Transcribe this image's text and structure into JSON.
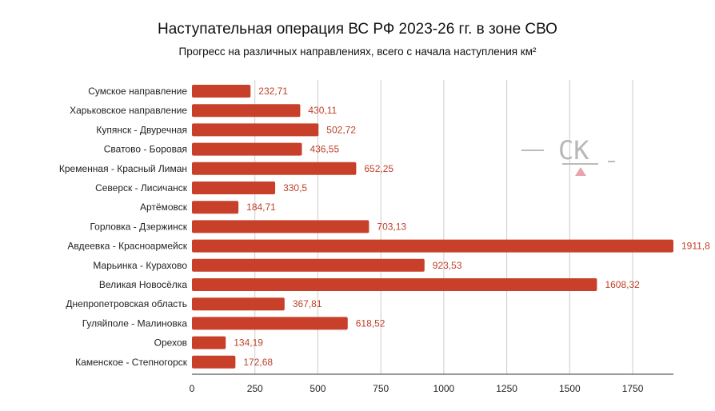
{
  "chart_data": {
    "type": "bar",
    "orientation": "horizontal",
    "title": "Наступательная операция ВС РФ 2023-26 гг. в зоне СВО",
    "subtitle": "Прогресс на различных направлениях, всего с начала наступления км²",
    "categories": [
      "Сумское направление",
      "Харьковское направление",
      "Купянск - Двуречная",
      "Сватово - Боровая",
      "Кременная - Красный Лиман",
      "Северск - Лисичанск",
      "Артёмовск",
      "Горловка - Дзержинск",
      "Авдеевка - Красноармейск",
      "Марьинка - Курахово",
      "Великая Новосёлка",
      "Днепропетровская область",
      "Гуляйполе - Малиновка",
      "Орехов",
      "Каменское - Степногорск"
    ],
    "values": [
      232.71,
      430.11,
      502.72,
      436.55,
      652.25,
      330.5,
      184.71,
      703.13,
      1911.8,
      923.53,
      1608.32,
      367.81,
      618.52,
      134.19,
      172.68
    ],
    "value_labels": [
      "232,71",
      "430,11",
      "502,72",
      "436,55",
      "652,25",
      "330,5",
      "184,71",
      "703,13",
      "1911,8",
      "923,53",
      "1608,32",
      "367,81",
      "618,52",
      "134,19",
      "172,68"
    ],
    "xlim": [
      0,
      1911.8
    ],
    "xticks": [
      0,
      250,
      500,
      750,
      1000,
      1250,
      1500,
      1750
    ],
    "grid": true,
    "bar_color": "#c8402a",
    "label_color": "#c0412a",
    "grid_color": "#cccccc"
  },
  "watermark": {
    "text": "СК",
    "accent_color": "#e8a5ad",
    "line_color": "#bbbbbb"
  }
}
